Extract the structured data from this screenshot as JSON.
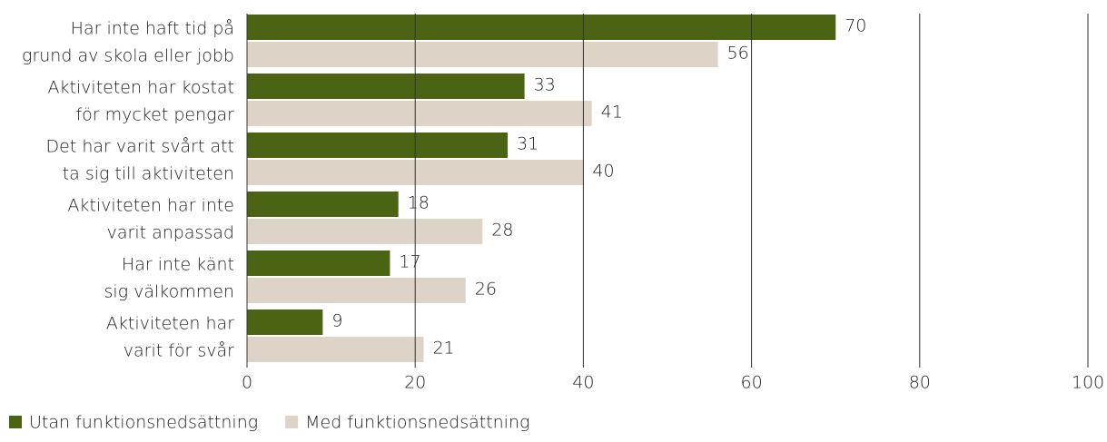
{
  "chart_data": {
    "type": "bar",
    "orientation": "horizontal",
    "categories": [
      [
        "Har inte haft tid på",
        "grund av skola eller jobb"
      ],
      [
        "Aktiviteten har kostat",
        "för mycket pengar"
      ],
      [
        "Det har varit svårt att",
        "ta sig till aktiviteten"
      ],
      [
        "Aktiviteten har inte",
        "varit anpassad"
      ],
      [
        "Har inte känt",
        "sig välkommen"
      ],
      [
        "Aktiviteten har",
        "varit för svår"
      ]
    ],
    "series": [
      {
        "name": "Utan funktionsnedsättning",
        "color": "#4a6414",
        "values": [
          70,
          33,
          31,
          18,
          17,
          9
        ]
      },
      {
        "name": "Med funktionsnedsättning",
        "color": "#ddd3c7",
        "values": [
          56,
          41,
          40,
          28,
          26,
          21
        ]
      }
    ],
    "xlim": [
      0,
      100
    ],
    "xticks": [
      0,
      20,
      40,
      60,
      80,
      100
    ],
    "grid": true,
    "legend": "bottom-left"
  }
}
